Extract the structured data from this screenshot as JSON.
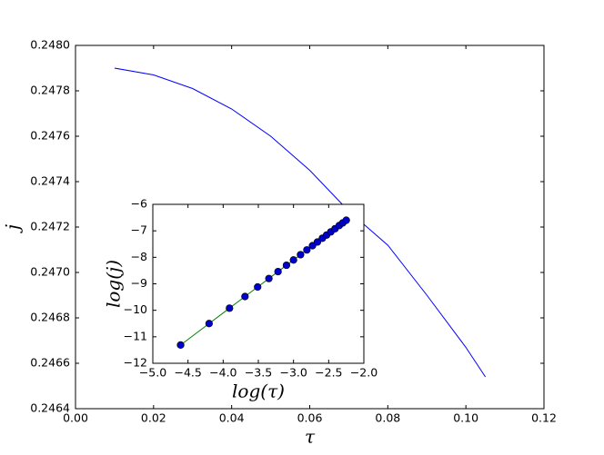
{
  "chart_data": [
    {
      "type": "line",
      "x_label": "τ",
      "y_label": "j",
      "x": [
        0.01,
        0.02,
        0.03,
        0.04,
        0.05,
        0.06,
        0.07,
        0.08,
        0.09,
        0.1,
        0.105
      ],
      "series": [
        {
          "color": "#0000ff",
          "values": [
            0.2479,
            0.24787,
            0.24781,
            0.24772,
            0.2476,
            0.24745,
            0.24727,
            0.24712,
            0.2469,
            0.24667,
            0.24654
          ]
        }
      ],
      "xlim": [
        0,
        0.12
      ],
      "xticks": [
        {
          "value": 0,
          "label": "0.00"
        },
        0.02,
        0.04,
        0.06,
        0.08,
        {
          "value": 0.1,
          "label": "0.10"
        },
        0.12
      ],
      "ylim": [
        0.2464,
        0.248
      ],
      "yticks": [
        0.2464,
        0.2466,
        0.2468,
        {
          "value": 0.247,
          "label": "0.2470"
        },
        0.2472,
        0.2474,
        0.2476,
        0.2478,
        {
          "value": 0.248,
          "label": "0.2480"
        }
      ]
    },
    {
      "type": "line",
      "x_label": "log(τ)",
      "y_label": "log(j)",
      "markers": true,
      "x": [
        -4.605,
        -4.2,
        -3.91,
        -3.69,
        -3.51,
        -3.35,
        -3.22,
        -3.1,
        -3.0,
        -2.9,
        -2.81,
        -2.73,
        -2.66,
        -2.59,
        -2.53,
        -2.47,
        -2.41,
        -2.35,
        -2.3,
        -2.25
      ],
      "series": [
        {
          "color": "#008000",
          "marker_color": "#0000cc",
          "values": [
            -11.31,
            -10.5,
            -9.92,
            -9.48,
            -9.12,
            -8.8,
            -8.54,
            -8.3,
            -8.1,
            -7.9,
            -7.72,
            -7.56,
            -7.42,
            -7.28,
            -7.16,
            -7.04,
            -6.92,
            -6.8,
            -6.7,
            -6.6
          ]
        }
      ],
      "xlim": [
        -5,
        -2
      ],
      "xticks": [
        {
          "value": -5,
          "label": "−5.0"
        },
        {
          "value": -4.5,
          "label": "−4.5"
        },
        {
          "value": -4,
          "label": "−4.0"
        },
        {
          "value": -3.5,
          "label": "−3.5"
        },
        {
          "value": -3,
          "label": "−3.0"
        },
        {
          "value": -2.5,
          "label": "−2.5"
        },
        {
          "value": -2,
          "label": "−2.0"
        }
      ],
      "ylim": [
        -12,
        -6
      ],
      "yticks": [
        {
          "value": -12,
          "label": "−12"
        },
        {
          "value": -11,
          "label": "−11"
        },
        {
          "value": -10,
          "label": "−10"
        },
        {
          "value": -9,
          "label": "−9"
        },
        {
          "value": -8,
          "label": "−8"
        },
        {
          "value": -7,
          "label": "−7"
        },
        {
          "value": -6,
          "label": "−6"
        }
      ]
    }
  ]
}
